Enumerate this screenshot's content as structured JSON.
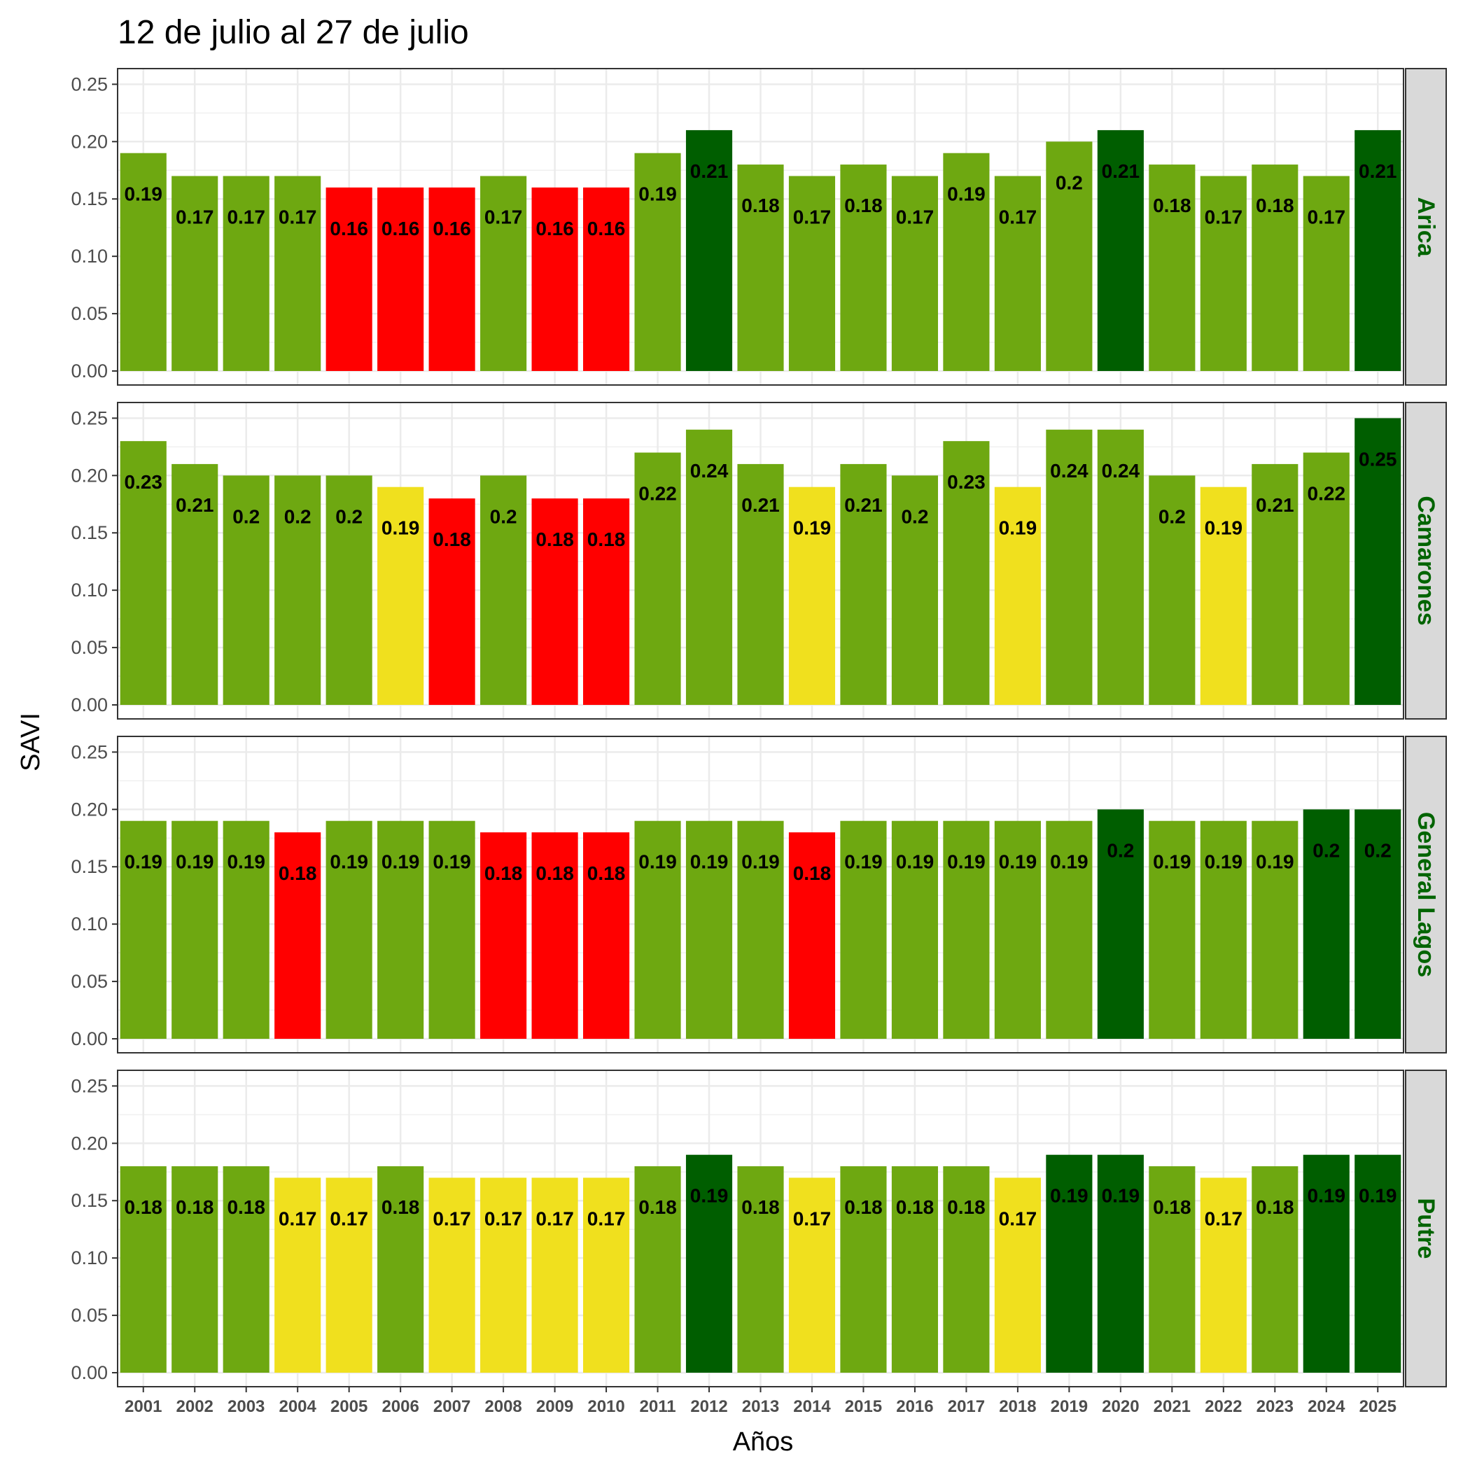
{
  "chart_data": {
    "type": "bar",
    "title": "12 de julio al 27 de julio",
    "xlabel": "Años",
    "ylabel": "SAVI",
    "ylim": [
      0,
      0.26
    ],
    "yticks": [
      "0.00",
      "0.05",
      "0.10",
      "0.15",
      "0.20",
      "0.25"
    ],
    "grid": true,
    "categories": [
      "2001",
      "2002",
      "2003",
      "2004",
      "2005",
      "2006",
      "2007",
      "2008",
      "2009",
      "2010",
      "2011",
      "2012",
      "2013",
      "2014",
      "2015",
      "2016",
      "2017",
      "2018",
      "2019",
      "2020",
      "2021",
      "2022",
      "2023",
      "2024",
      "2025"
    ],
    "colors": {
      "red": "#ff0000",
      "yellow": "#f0e01e",
      "green": "#6ea811",
      "dark": "#005e00"
    },
    "panels": [
      {
        "name": "Arica",
        "values": [
          0.19,
          0.17,
          0.17,
          0.17,
          0.16,
          0.16,
          0.16,
          0.17,
          0.16,
          0.16,
          0.19,
          0.21,
          0.18,
          0.17,
          0.18,
          0.17,
          0.19,
          0.17,
          0.2,
          0.21,
          0.18,
          0.17,
          0.18,
          0.17,
          0.21
        ],
        "labels": [
          "0.19",
          "0.17",
          "0.17",
          "0.17",
          "0.16",
          "0.16",
          "0.16",
          "0.17",
          "0.16",
          "0.16",
          "0.19",
          "0.21",
          "0.18",
          "0.17",
          "0.18",
          "0.17",
          "0.19",
          "0.17",
          "0.2",
          "0.21",
          "0.18",
          "0.17",
          "0.18",
          "0.17",
          "0.21"
        ],
        "classes": [
          "green",
          "green",
          "green",
          "green",
          "red",
          "red",
          "red",
          "green",
          "red",
          "red",
          "green",
          "dark",
          "green",
          "green",
          "green",
          "green",
          "green",
          "green",
          "green",
          "dark",
          "green",
          "green",
          "green",
          "green",
          "dark"
        ]
      },
      {
        "name": "Camarones",
        "values": [
          0.23,
          0.21,
          0.2,
          0.2,
          0.2,
          0.19,
          0.18,
          0.2,
          0.18,
          0.18,
          0.22,
          0.24,
          0.21,
          0.19,
          0.21,
          0.2,
          0.23,
          0.19,
          0.24,
          0.24,
          0.2,
          0.19,
          0.21,
          0.22,
          0.25
        ],
        "labels": [
          "0.23",
          "0.21",
          "0.2",
          "0.2",
          "0.2",
          "0.19",
          "0.18",
          "0.2",
          "0.18",
          "0.18",
          "0.22",
          "0.24",
          "0.21",
          "0.19",
          "0.21",
          "0.2",
          "0.23",
          "0.19",
          "0.24",
          "0.24",
          "0.2",
          "0.19",
          "0.21",
          "0.22",
          "0.25"
        ],
        "classes": [
          "green",
          "green",
          "green",
          "green",
          "green",
          "yellow",
          "red",
          "green",
          "red",
          "red",
          "green",
          "green",
          "green",
          "yellow",
          "green",
          "green",
          "green",
          "yellow",
          "green",
          "green",
          "green",
          "yellow",
          "green",
          "green",
          "dark"
        ]
      },
      {
        "name": "General Lagos",
        "values": [
          0.19,
          0.19,
          0.19,
          0.18,
          0.19,
          0.19,
          0.19,
          0.18,
          0.18,
          0.18,
          0.19,
          0.19,
          0.19,
          0.18,
          0.19,
          0.19,
          0.19,
          0.19,
          0.19,
          0.2,
          0.19,
          0.19,
          0.19,
          0.2,
          0.2
        ],
        "labels": [
          "0.19",
          "0.19",
          "0.19",
          "0.18",
          "0.19",
          "0.19",
          "0.19",
          "0.18",
          "0.18",
          "0.18",
          "0.19",
          "0.19",
          "0.19",
          "0.18",
          "0.19",
          "0.19",
          "0.19",
          "0.19",
          "0.19",
          "0.2",
          "0.19",
          "0.19",
          "0.19",
          "0.2",
          "0.2"
        ],
        "classes": [
          "green",
          "green",
          "green",
          "red",
          "green",
          "green",
          "green",
          "red",
          "red",
          "red",
          "green",
          "green",
          "green",
          "red",
          "green",
          "green",
          "green",
          "green",
          "green",
          "dark",
          "green",
          "green",
          "green",
          "dark",
          "dark"
        ]
      },
      {
        "name": "Putre",
        "values": [
          0.18,
          0.18,
          0.18,
          0.17,
          0.17,
          0.18,
          0.17,
          0.17,
          0.17,
          0.17,
          0.18,
          0.19,
          0.18,
          0.17,
          0.18,
          0.18,
          0.18,
          0.17,
          0.19,
          0.19,
          0.18,
          0.17,
          0.18,
          0.19,
          0.19
        ],
        "labels": [
          "0.18",
          "0.18",
          "0.18",
          "0.17",
          "0.17",
          "0.18",
          "0.17",
          "0.17",
          "0.17",
          "0.17",
          "0.18",
          "0.19",
          "0.18",
          "0.17",
          "0.18",
          "0.18",
          "0.18",
          "0.17",
          "0.19",
          "0.19",
          "0.18",
          "0.17",
          "0.18",
          "0.19",
          "0.19"
        ],
        "classes": [
          "green",
          "green",
          "green",
          "yellow",
          "yellow",
          "green",
          "yellow",
          "yellow",
          "yellow",
          "yellow",
          "green",
          "dark",
          "green",
          "yellow",
          "green",
          "green",
          "green",
          "yellow",
          "dark",
          "dark",
          "green",
          "yellow",
          "green",
          "dark",
          "dark"
        ]
      }
    ]
  }
}
